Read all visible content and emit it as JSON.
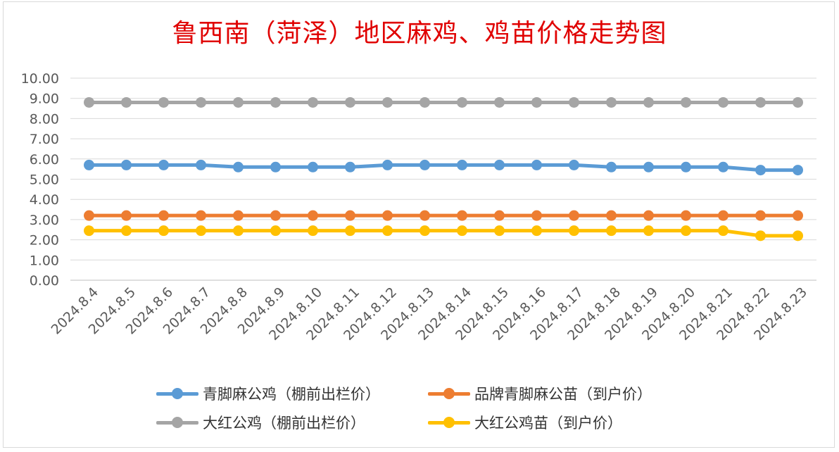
{
  "chart_data": {
    "type": "line",
    "title": "鲁西南（菏泽）地区麻鸡、鸡苗价格走势图",
    "xlabel": "",
    "ylabel": "",
    "ylim": [
      0,
      10
    ],
    "y_ticks": [
      "0.00",
      "1.00",
      "2.00",
      "3.00",
      "4.00",
      "5.00",
      "6.00",
      "7.00",
      "8.00",
      "9.00",
      "10.00"
    ],
    "grid": true,
    "legend_position": "bottom",
    "categories": [
      "2024.8.4",
      "2024.8.5",
      "2024.8.6",
      "2024.8.7",
      "2024.8.8",
      "2024.8.9",
      "2024.8.10",
      "2024.8.11",
      "2024.8.12",
      "2024.8.13",
      "2024.8.14",
      "2024.8.15",
      "2024.8.16",
      "2024.8.17",
      "2024.8.18",
      "2024.8.19",
      "2024.8.20",
      "2024.8.21",
      "2024.8.22",
      "2024.8.23"
    ],
    "series": [
      {
        "name": "青脚麻公鸡（棚前出栏价）",
        "color": "#5b9bd5",
        "values": [
          5.7,
          5.7,
          5.7,
          5.7,
          5.6,
          5.6,
          5.6,
          5.6,
          5.7,
          5.7,
          5.7,
          5.7,
          5.7,
          5.7,
          5.6,
          5.6,
          5.6,
          5.6,
          5.45,
          5.45
        ]
      },
      {
        "name": "品牌青脚麻公苗（到户价）",
        "color": "#ed7d31",
        "values": [
          3.2,
          3.2,
          3.2,
          3.2,
          3.2,
          3.2,
          3.2,
          3.2,
          3.2,
          3.2,
          3.2,
          3.2,
          3.2,
          3.2,
          3.2,
          3.2,
          3.2,
          3.2,
          3.2,
          3.2
        ]
      },
      {
        "name": "大红公鸡（棚前出栏价）",
        "color": "#a5a5a5",
        "values": [
          8.8,
          8.8,
          8.8,
          8.8,
          8.8,
          8.8,
          8.8,
          8.8,
          8.8,
          8.8,
          8.8,
          8.8,
          8.8,
          8.8,
          8.8,
          8.8,
          8.8,
          8.8,
          8.8,
          8.8
        ]
      },
      {
        "name": "大红公鸡苗（到户价）",
        "color": "#ffc000",
        "values": [
          2.45,
          2.45,
          2.45,
          2.45,
          2.45,
          2.45,
          2.45,
          2.45,
          2.45,
          2.45,
          2.45,
          2.45,
          2.45,
          2.45,
          2.45,
          2.45,
          2.45,
          2.45,
          2.2,
          2.2
        ]
      }
    ]
  }
}
